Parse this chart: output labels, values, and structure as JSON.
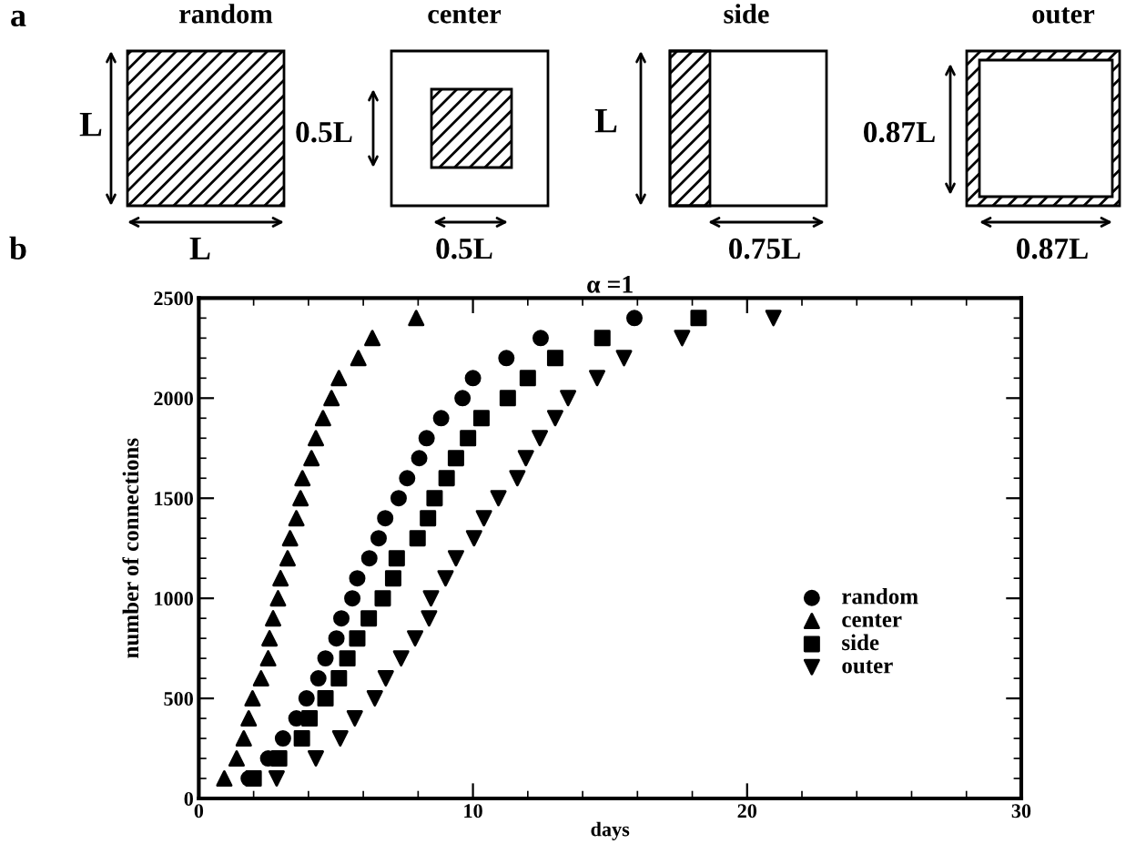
{
  "chart_data": {
    "type": "scatter",
    "title": "α =1",
    "xlabel": "days",
    "ylabel": "number of connections",
    "xlim": [
      0,
      30
    ],
    "xticks": [
      0,
      10,
      20,
      30
    ],
    "ylim": [
      0,
      2500
    ],
    "yticks": [
      0,
      500,
      1000,
      1500,
      2000,
      2500
    ],
    "grid": false,
    "legend": "bottom right",
    "annotations": [
      "a",
      "b",
      "random",
      "center",
      "side",
      "outer",
      "L",
      "L",
      "0.5L",
      "0.5L",
      "L",
      "0.75L",
      "0.87L",
      "0.87L"
    ],
    "series": [
      {
        "name": "random",
        "color": "#000000",
        "marker": "circle",
        "x": [
          1.82,
          2.53,
          3.07,
          3.56,
          3.93,
          4.36,
          4.62,
          5.02,
          5.2,
          5.6,
          5.78,
          6.22,
          6.56,
          6.8,
          7.29,
          7.6,
          8.04,
          8.31,
          8.84,
          9.62,
          10.0,
          11.22,
          12.47,
          15.89
        ],
        "values": [
          100,
          200,
          300,
          400,
          500,
          600,
          700,
          800,
          900,
          1000,
          1100,
          1200,
          1300,
          1400,
          1500,
          1600,
          1700,
          1800,
          1900,
          2000,
          2100,
          2200,
          2300,
          2400
        ]
      },
      {
        "name": "center",
        "color": "#000000",
        "marker": "triangle",
        "x": [
          0.93,
          1.38,
          1.64,
          1.82,
          1.96,
          2.27,
          2.53,
          2.58,
          2.71,
          2.89,
          2.98,
          3.24,
          3.33,
          3.56,
          3.71,
          3.78,
          4.11,
          4.27,
          4.53,
          4.84,
          5.11,
          5.82,
          6.33,
          7.93
        ],
        "values": [
          100,
          200,
          300,
          400,
          500,
          600,
          700,
          800,
          900,
          1000,
          1100,
          1200,
          1300,
          1400,
          1500,
          1600,
          1700,
          1800,
          1900,
          2000,
          2100,
          2200,
          2300,
          2400
        ]
      },
      {
        "name": "side",
        "color": "#000000",
        "marker": "square",
        "x": [
          2.0,
          2.93,
          3.76,
          4.04,
          4.62,
          5.11,
          5.42,
          5.78,
          6.2,
          6.71,
          7.09,
          7.22,
          7.98,
          8.36,
          8.6,
          9.04,
          9.38,
          9.82,
          10.31,
          11.27,
          12.0,
          13.0,
          14.72,
          18.23
        ],
        "values": [
          100,
          200,
          300,
          400,
          500,
          600,
          700,
          800,
          900,
          1000,
          1100,
          1200,
          1300,
          1400,
          1500,
          1600,
          1700,
          1800,
          1900,
          2000,
          2100,
          2200,
          2300,
          2400
        ]
      },
      {
        "name": "outer",
        "color": "#000000",
        "marker": "triangle_down",
        "x": [
          2.84,
          4.27,
          5.16,
          5.69,
          6.42,
          6.82,
          7.38,
          7.89,
          8.4,
          8.47,
          9.0,
          9.38,
          10.04,
          10.4,
          10.93,
          11.62,
          11.93,
          12.44,
          13.0,
          13.47,
          14.53,
          15.51,
          17.63,
          20.96
        ],
        "values": [
          100,
          200,
          300,
          400,
          500,
          600,
          700,
          800,
          900,
          1000,
          1100,
          1200,
          1300,
          1400,
          1500,
          1600,
          1700,
          1800,
          1900,
          2000,
          2100,
          2200,
          2300,
          2400
        ]
      }
    ]
  }
}
